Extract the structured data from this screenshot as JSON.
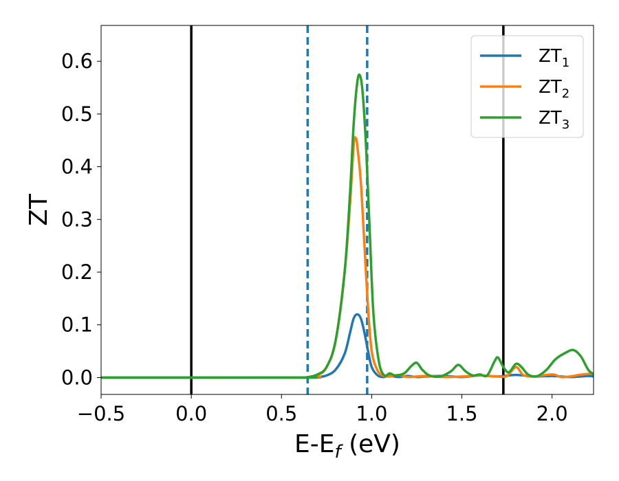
{
  "chart_data": {
    "type": "line",
    "xlabel": "E-E",
    "xlabel_sub": "f",
    "xlabel_unit": " (eV)",
    "ylabel": "ZT",
    "xlim": [
      -0.5,
      2.23
    ],
    "ylim": [
      -0.032,
      0.668
    ],
    "xticks": [
      -0.5,
      0.0,
      0.5,
      1.0,
      1.5,
      2.0
    ],
    "xtick_labels": [
      "−0.5",
      "0.0",
      "0.5",
      "1.0",
      "1.5",
      "2.0"
    ],
    "yticks": [
      0.0,
      0.1,
      0.2,
      0.3,
      0.4,
      0.5,
      0.6
    ],
    "ytick_labels": [
      "0.0",
      "0.1",
      "0.2",
      "0.3",
      "0.4",
      "0.5",
      "0.6"
    ],
    "grid": false,
    "legend_position": "top-right",
    "vertical_lines": [
      {
        "x": 0.0,
        "style": "solid",
        "color": "#000000"
      },
      {
        "x": 1.73,
        "style": "solid",
        "color": "#000000"
      },
      {
        "x": 0.645,
        "style": "dashed",
        "color": "#1f77b4"
      },
      {
        "x": 0.975,
        "style": "dashed",
        "color": "#1f77b4"
      }
    ],
    "series": [
      {
        "name": "ZT",
        "name_sub": "1",
        "color": "#1f77b4",
        "points": [
          [
            -0.5,
            0.0
          ],
          [
            0.6,
            0.0
          ],
          [
            0.7,
            0.001
          ],
          [
            0.75,
            0.004
          ],
          [
            0.8,
            0.015
          ],
          [
            0.85,
            0.045
          ],
          [
            0.88,
            0.085
          ],
          [
            0.9,
            0.112
          ],
          [
            0.92,
            0.12
          ],
          [
            0.94,
            0.112
          ],
          [
            0.96,
            0.085
          ],
          [
            0.98,
            0.05
          ],
          [
            1.0,
            0.02
          ],
          [
            1.03,
            0.005
          ],
          [
            1.06,
            0.001
          ],
          [
            1.1,
            0.003
          ],
          [
            1.15,
            0.001
          ],
          [
            1.2,
            0.003
          ],
          [
            1.25,
            0.001
          ],
          [
            1.3,
            0.002
          ],
          [
            1.4,
            0.003
          ],
          [
            1.5,
            0.001
          ],
          [
            1.6,
            0.004
          ],
          [
            1.7,
            0.002
          ],
          [
            1.8,
            0.005
          ],
          [
            1.9,
            0.002
          ],
          [
            2.0,
            0.003
          ],
          [
            2.1,
            0.001
          ],
          [
            2.2,
            0.003
          ],
          [
            2.23,
            0.002
          ]
        ]
      },
      {
        "name": "ZT",
        "name_sub": "2",
        "color": "#ff7f0e",
        "points": [
          [
            -0.5,
            0.0
          ],
          [
            0.6,
            0.0
          ],
          [
            0.7,
            0.005
          ],
          [
            0.75,
            0.02
          ],
          [
            0.8,
            0.07
          ],
          [
            0.85,
            0.2
          ],
          [
            0.88,
            0.33
          ],
          [
            0.9,
            0.44
          ],
          [
            0.91,
            0.455
          ],
          [
            0.92,
            0.44
          ],
          [
            0.94,
            0.37
          ],
          [
            0.96,
            0.25
          ],
          [
            0.98,
            0.13
          ],
          [
            1.0,
            0.05
          ],
          [
            1.03,
            0.015
          ],
          [
            1.06,
            0.004
          ],
          [
            1.1,
            0.002
          ],
          [
            1.15,
            0.005
          ],
          [
            1.2,
            0.001
          ],
          [
            1.3,
            0.003
          ],
          [
            1.4,
            0.001
          ],
          [
            1.5,
            0.002
          ],
          [
            1.6,
            0.004
          ],
          [
            1.7,
            0.002
          ],
          [
            1.75,
            0.003
          ],
          [
            1.8,
            0.02
          ],
          [
            1.84,
            0.005
          ],
          [
            1.9,
            0.002
          ],
          [
            2.0,
            0.006
          ],
          [
            2.05,
            0.001
          ],
          [
            2.1,
            0.002
          ],
          [
            2.15,
            0.005
          ],
          [
            2.2,
            0.007
          ],
          [
            2.23,
            0.008
          ]
        ]
      },
      {
        "name": "ZT",
        "name_sub": "3",
        "color": "#2ca02c",
        "points": [
          [
            -0.5,
            0.0
          ],
          [
            0.6,
            0.0
          ],
          [
            0.65,
            0.001
          ],
          [
            0.7,
            0.006
          ],
          [
            0.75,
            0.02
          ],
          [
            0.8,
            0.07
          ],
          [
            0.85,
            0.2
          ],
          [
            0.88,
            0.35
          ],
          [
            0.9,
            0.48
          ],
          [
            0.92,
            0.56
          ],
          [
            0.935,
            0.573
          ],
          [
            0.95,
            0.54
          ],
          [
            0.97,
            0.43
          ],
          [
            0.99,
            0.27
          ],
          [
            1.01,
            0.12
          ],
          [
            1.04,
            0.03
          ],
          [
            1.07,
            0.004
          ],
          [
            1.1,
            0.008
          ],
          [
            1.13,
            0.004
          ],
          [
            1.18,
            0.008
          ],
          [
            1.22,
            0.022
          ],
          [
            1.25,
            0.028
          ],
          [
            1.28,
            0.015
          ],
          [
            1.32,
            0.004
          ],
          [
            1.38,
            0.002
          ],
          [
            1.44,
            0.012
          ],
          [
            1.48,
            0.024
          ],
          [
            1.52,
            0.012
          ],
          [
            1.56,
            0.004
          ],
          [
            1.6,
            0.006
          ],
          [
            1.64,
            0.004
          ],
          [
            1.68,
            0.03
          ],
          [
            1.7,
            0.038
          ],
          [
            1.73,
            0.02
          ],
          [
            1.76,
            0.01
          ],
          [
            1.8,
            0.026
          ],
          [
            1.83,
            0.02
          ],
          [
            1.87,
            0.005
          ],
          [
            1.92,
            0.003
          ],
          [
            1.97,
            0.015
          ],
          [
            2.02,
            0.035
          ],
          [
            2.08,
            0.048
          ],
          [
            2.12,
            0.052
          ],
          [
            2.16,
            0.04
          ],
          [
            2.2,
            0.015
          ],
          [
            2.23,
            0.006
          ]
        ]
      }
    ]
  }
}
